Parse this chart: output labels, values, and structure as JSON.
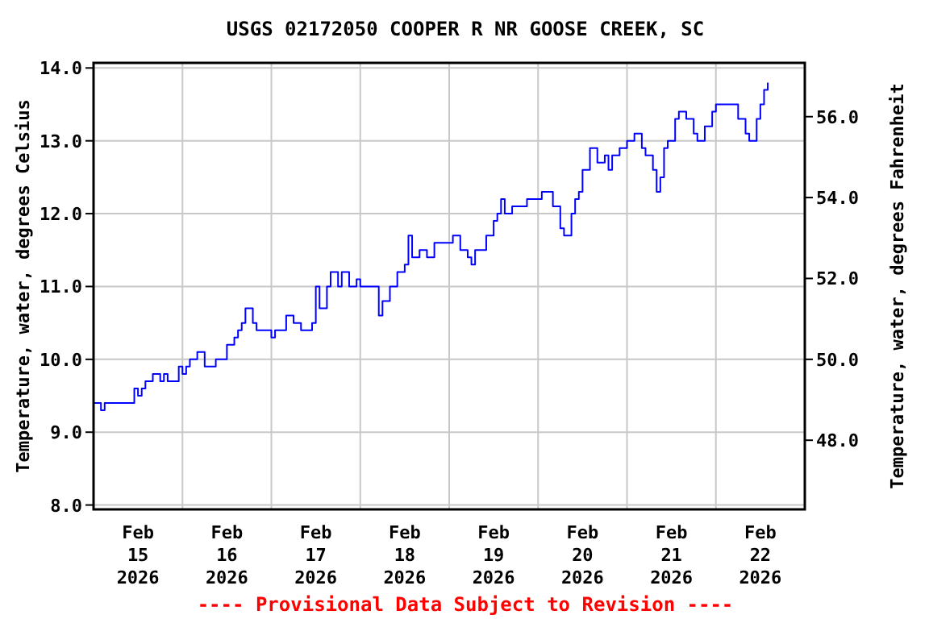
{
  "chart_data": {
    "type": "step",
    "title": "USGS 02172050 COOPER R NR GOOSE CREEK, SC",
    "ylabel": "Temperature, water, degrees Celsius",
    "y2label": "Temperature, water, degrees Fahrenheit",
    "annotations": [
      "---- Provisional Data Subject to Revision ----"
    ],
    "x": [
      "2026-02-15T00:00",
      "2026-02-15T02:00",
      "2026-02-15T03:00",
      "2026-02-15T10:00",
      "2026-02-15T11:00",
      "2026-02-15T12:00",
      "2026-02-15T13:00",
      "2026-02-15T14:00",
      "2026-02-15T16:00",
      "2026-02-15T18:00",
      "2026-02-15T19:00",
      "2026-02-15T20:00",
      "2026-02-15T22:00",
      "2026-02-15T23:00",
      "2026-02-16T00:00",
      "2026-02-16T01:00",
      "2026-02-16T02:00",
      "2026-02-16T04:00",
      "2026-02-16T06:00",
      "2026-02-16T08:00",
      "2026-02-16T09:00",
      "2026-02-16T11:00",
      "2026-02-16T12:00",
      "2026-02-16T14:00",
      "2026-02-16T15:00",
      "2026-02-16T16:00",
      "2026-02-16T17:00",
      "2026-02-16T18:00",
      "2026-02-16T19:00",
      "2026-02-16T20:00",
      "2026-02-17T00:00",
      "2026-02-17T01:00",
      "2026-02-17T03:00",
      "2026-02-17T04:00",
      "2026-02-17T06:00",
      "2026-02-17T08:00",
      "2026-02-17T10:00",
      "2026-02-17T11:00",
      "2026-02-17T12:00",
      "2026-02-17T13:00",
      "2026-02-17T15:00",
      "2026-02-17T16:00",
      "2026-02-17T18:00",
      "2026-02-17T19:00",
      "2026-02-17T21:00",
      "2026-02-17T23:00",
      "2026-02-18T00:00",
      "2026-02-18T04:00",
      "2026-02-18T05:00",
      "2026-02-18T06:00",
      "2026-02-18T08:00",
      "2026-02-18T10:00",
      "2026-02-18T12:00",
      "2026-02-18T13:00",
      "2026-02-18T14:00",
      "2026-02-18T16:00",
      "2026-02-18T18:00",
      "2026-02-18T20:00",
      "2026-02-19T00:00",
      "2026-02-19T01:00",
      "2026-02-19T03:00",
      "2026-02-19T05:00",
      "2026-02-19T06:00",
      "2026-02-19T07:00",
      "2026-02-19T10:00",
      "2026-02-19T12:00",
      "2026-02-19T13:00",
      "2026-02-19T14:00",
      "2026-02-19T15:00",
      "2026-02-19T17:00",
      "2026-02-19T21:00",
      "2026-02-20T00:00",
      "2026-02-20T01:00",
      "2026-02-20T04:00",
      "2026-02-20T06:00",
      "2026-02-20T07:00",
      "2026-02-20T09:00",
      "2026-02-20T10:00",
      "2026-02-20T11:00",
      "2026-02-20T12:00",
      "2026-02-20T14:00",
      "2026-02-20T16:00",
      "2026-02-20T18:00",
      "2026-02-20T19:00",
      "2026-02-20T20:00",
      "2026-02-20T22:00",
      "2026-02-21T00:00",
      "2026-02-21T02:00",
      "2026-02-21T04:00",
      "2026-02-21T05:00",
      "2026-02-21T07:00",
      "2026-02-21T08:00",
      "2026-02-21T09:00",
      "2026-02-21T10:00",
      "2026-02-21T11:00",
      "2026-02-21T13:00",
      "2026-02-21T14:00",
      "2026-02-21T16:00",
      "2026-02-21T18:00",
      "2026-02-21T19:00",
      "2026-02-21T21:00",
      "2026-02-21T23:00",
      "2026-02-22T00:00",
      "2026-02-22T04:00",
      "2026-02-22T06:00",
      "2026-02-22T08:00",
      "2026-02-22T09:00",
      "2026-02-22T11:00",
      "2026-02-22T12:00",
      "2026-02-22T13:00",
      "2026-02-22T14:00"
    ],
    "series": [
      {
        "color": "#0000ff",
        "values": [
          9.4,
          9.3,
          9.4,
          9.4,
          9.6,
          9.5,
          9.6,
          9.7,
          9.8,
          9.7,
          9.8,
          9.7,
          9.7,
          9.9,
          9.8,
          9.9,
          10.0,
          10.1,
          9.9,
          9.9,
          10.0,
          10.0,
          10.2,
          10.3,
          10.4,
          10.5,
          10.7,
          10.7,
          10.5,
          10.4,
          10.3,
          10.4,
          10.4,
          10.6,
          10.5,
          10.4,
          10.4,
          10.5,
          11.0,
          10.7,
          11.0,
          11.2,
          11.0,
          11.2,
          11.0,
          11.1,
          11.0,
          11.0,
          10.6,
          10.8,
          11.0,
          11.2,
          11.3,
          11.7,
          11.4,
          11.5,
          11.4,
          11.6,
          11.6,
          11.7,
          11.5,
          11.4,
          11.3,
          11.5,
          11.7,
          11.9,
          12.0,
          12.2,
          12.0,
          12.1,
          12.2,
          12.2,
          12.3,
          12.1,
          11.8,
          11.7,
          12.0,
          12.2,
          12.3,
          12.6,
          12.9,
          12.7,
          12.8,
          12.6,
          12.8,
          12.9,
          13.0,
          13.1,
          12.9,
          12.8,
          12.6,
          12.3,
          12.5,
          12.9,
          13.0,
          13.3,
          13.4,
          13.3,
          13.1,
          13.0,
          13.2,
          13.4,
          13.5,
          13.5,
          13.3,
          13.1,
          13.0,
          13.3,
          13.5,
          13.7,
          13.8
        ]
      }
    ],
    "xlim": [
      "2026-02-15T00:00",
      "2026-02-23T00:00"
    ],
    "xticks": [
      {
        "value": "2026-02-15T12:00",
        "label": "Feb\n15\n2026"
      },
      {
        "value": "2026-02-16T00:00",
        "label": null
      },
      {
        "value": "2026-02-16T12:00",
        "label": "Feb\n16\n2026"
      },
      {
        "value": "2026-02-17T00:00",
        "label": null
      },
      {
        "value": "2026-02-17T12:00",
        "label": "Feb\n17\n2026"
      },
      {
        "value": "2026-02-18T00:00",
        "label": null
      },
      {
        "value": "2026-02-18T12:00",
        "label": "Feb\n18\n2026"
      },
      {
        "value": "2026-02-19T00:00",
        "label": null
      },
      {
        "value": "2026-02-19T12:00",
        "label": "Feb\n19\n2026"
      },
      {
        "value": "2026-02-20T00:00",
        "label": null
      },
      {
        "value": "2026-02-20T12:00",
        "label": "Feb\n20\n2026"
      },
      {
        "value": "2026-02-21T00:00",
        "label": null
      },
      {
        "value": "2026-02-21T12:00",
        "label": "Feb\n21\n2026"
      },
      {
        "value": "2026-02-22T00:00",
        "label": null
      },
      {
        "value": "2026-02-22T12:00",
        "label": "Feb\n22\n2026"
      }
    ],
    "ylim": [
      7.94,
      14.07
    ],
    "yticks": [
      {
        "value": 8,
        "label": "8.0"
      },
      {
        "value": 9,
        "label": "9.0"
      },
      {
        "value": 10,
        "label": "10.0"
      },
      {
        "value": 11,
        "label": "11.0"
      },
      {
        "value": 12,
        "label": "12.0"
      },
      {
        "value": 13,
        "label": "13.0"
      },
      {
        "value": 14,
        "label": "14.0"
      }
    ],
    "y2lim": [
      46.29,
      57.33
    ],
    "y2ticks": [
      {
        "value": 48,
        "label": "48.0"
      },
      {
        "value": 50,
        "label": "50.0"
      },
      {
        "value": 52,
        "label": "52.0"
      },
      {
        "value": 54,
        "label": "54.0"
      },
      {
        "value": 56,
        "label": "56.0"
      }
    ],
    "grid": true
  }
}
